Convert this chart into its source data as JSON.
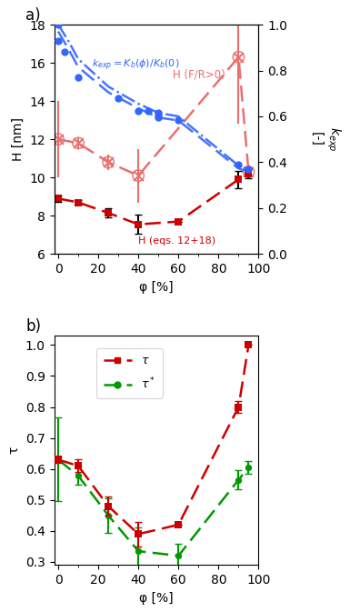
{
  "panel_a": {
    "H_fit_x": [
      0,
      10,
      25,
      40,
      60,
      90,
      95
    ],
    "H_fit_y": [
      8.9,
      8.7,
      8.15,
      7.55,
      7.7,
      9.9,
      10.2
    ],
    "H_fit_yerr": [
      0.15,
      0.1,
      0.25,
      0.5,
      0.0,
      0.45,
      0.25
    ],
    "H_fit_color": "#cc0000",
    "H_onset_x": [
      0,
      10,
      25,
      40,
      90,
      95
    ],
    "H_onset_y": [
      12.0,
      11.8,
      10.8,
      10.1,
      16.3,
      10.3
    ],
    "H_onset_yerr": [
      2.0,
      0.3,
      0.4,
      1.4,
      3.5,
      0.3
    ],
    "H_onset_color": "#e87070",
    "kexp_scatter_x": [
      0,
      0,
      3,
      10,
      30,
      40,
      45,
      50,
      50,
      50,
      60,
      90,
      95
    ],
    "kexp_scatter_y": [
      1.0,
      0.93,
      0.88,
      0.77,
      0.68,
      0.625,
      0.625,
      0.615,
      0.605,
      0.595,
      0.585,
      0.39,
      0.37
    ],
    "kexp_color": "#3366ff",
    "kexp_line1_x": [
      0,
      5,
      10,
      25,
      40,
      50,
      60,
      90,
      95
    ],
    "kexp_line1_y": [
      1.0,
      0.93,
      0.85,
      0.73,
      0.655,
      0.615,
      0.6,
      0.385,
      0.37
    ],
    "kexp_line2_x": [
      0,
      5,
      10,
      25,
      40,
      50,
      60,
      90,
      95
    ],
    "kexp_line2_y": [
      0.97,
      0.895,
      0.815,
      0.705,
      0.635,
      0.595,
      0.582,
      0.373,
      0.358
    ],
    "xlabel": "φ [%]",
    "ylabel_left": "H [nm]",
    "ylim_left": [
      6.0,
      18.0
    ],
    "ylim_right": [
      0.0,
      1.0
    ],
    "xlim": [
      -2,
      100
    ]
  },
  "panel_b": {
    "tau_x": [
      0,
      10,
      25,
      40,
      60,
      90,
      95
    ],
    "tau_y": [
      0.63,
      0.61,
      0.48,
      0.39,
      0.42,
      0.8,
      1.0
    ],
    "tau_yerr": [
      0.01,
      0.02,
      0.03,
      0.04,
      0.0,
      0.02,
      0.0
    ],
    "tau_color": "#cc0000",
    "tau_star_x": [
      0,
      10,
      25,
      40,
      60,
      90,
      95
    ],
    "tau_star_y": [
      0.63,
      0.578,
      0.45,
      0.335,
      0.32,
      0.565,
      0.605
    ],
    "tau_star_yerr": [
      0.135,
      0.03,
      0.055,
      0.075,
      0.04,
      0.03,
      0.02
    ],
    "tau_star_color": "#009900",
    "xlabel": "φ [%]",
    "ylabel": "τ",
    "ylim": [
      0.29,
      1.03
    ],
    "xlim": [
      -2,
      100
    ]
  }
}
